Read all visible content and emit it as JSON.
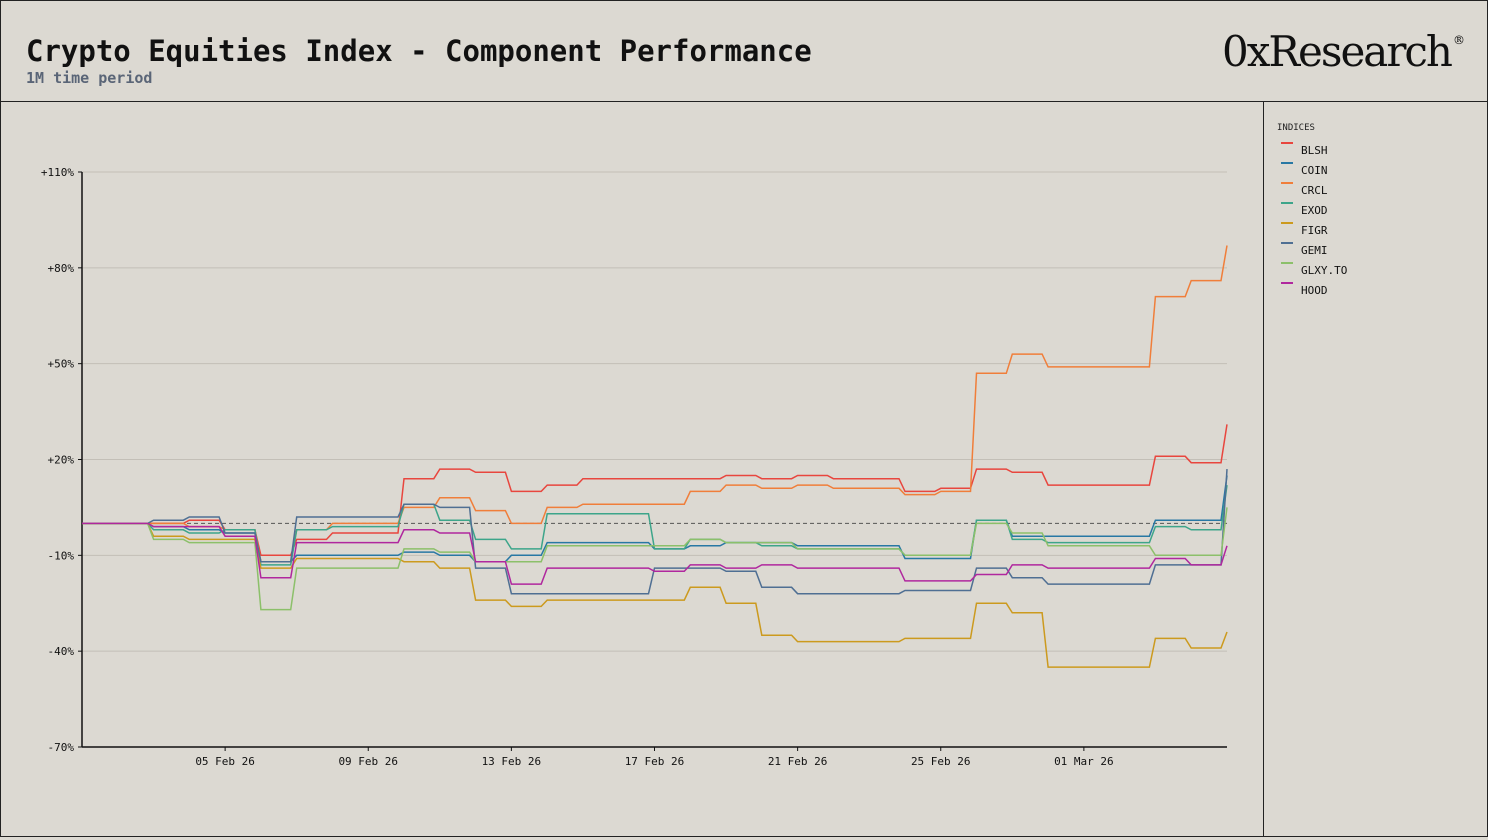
{
  "header": {
    "title": "Crypto Equities Index - Component Performance",
    "subtitle": "1M time period",
    "logo": "0xResearch",
    "logo_mark": "®"
  },
  "legend": {
    "title": "INDICES"
  },
  "chart_data": {
    "type": "line",
    "title": "Crypto Equities Index - Component Performance",
    "subtitle": "1M time period",
    "xlabel": "",
    "ylabel": "",
    "x_start": "2026-02-01",
    "x_end": "2026-03-05",
    "x_ticks": [
      "05 Feb 26",
      "09 Feb 26",
      "13 Feb 26",
      "17 Feb 26",
      "21 Feb 26",
      "25 Feb 26",
      "01 Mar 26"
    ],
    "y_ticks": [
      "+110%",
      "+80%",
      "+50%",
      "+20%",
      "-10%",
      "-40%",
      "-70%"
    ],
    "ylim": [
      -70,
      110
    ],
    "baseline": 0,
    "grid": true,
    "legend_position": "right",
    "series": [
      {
        "name": "BLSH",
        "color": "#e8463e",
        "points": [
          [
            "2026-02-01",
            0
          ],
          [
            "2026-02-02",
            0
          ],
          [
            "2026-02-03",
            0
          ],
          [
            "2026-02-04",
            1
          ],
          [
            "2026-02-05",
            -2
          ],
          [
            "2026-02-06",
            -10
          ],
          [
            "2026-02-07",
            -5
          ],
          [
            "2026-02-08",
            -3
          ],
          [
            "2026-02-09",
            -3
          ],
          [
            "2026-02-10",
            14
          ],
          [
            "2026-02-11",
            17
          ],
          [
            "2026-02-12",
            16
          ],
          [
            "2026-02-13",
            10
          ],
          [
            "2026-02-14",
            12
          ],
          [
            "2026-02-15",
            14
          ],
          [
            "2026-02-16",
            14
          ],
          [
            "2026-02-17",
            14
          ],
          [
            "2026-02-18",
            14
          ],
          [
            "2026-02-19",
            15
          ],
          [
            "2026-02-20",
            14
          ],
          [
            "2026-02-21",
            15
          ],
          [
            "2026-02-22",
            14
          ],
          [
            "2026-02-23",
            14
          ],
          [
            "2026-02-24",
            10
          ],
          [
            "2026-02-25",
            11
          ],
          [
            "2026-02-26",
            17
          ],
          [
            "2026-02-27",
            16
          ],
          [
            "2026-02-28",
            12
          ],
          [
            "2026-03-01",
            12
          ],
          [
            "2026-03-02",
            12
          ],
          [
            "2026-03-03",
            21
          ],
          [
            "2026-03-04",
            19
          ],
          [
            "2026-03-05",
            31
          ]
        ]
      },
      {
        "name": "COIN",
        "color": "#2878a4",
        "points": [
          [
            "2026-02-01",
            0
          ],
          [
            "2026-02-02",
            0
          ],
          [
            "2026-02-03",
            -1
          ],
          [
            "2026-02-04",
            -2
          ],
          [
            "2026-02-05",
            -3
          ],
          [
            "2026-02-06",
            -12
          ],
          [
            "2026-02-07",
            -10
          ],
          [
            "2026-02-08",
            -10
          ],
          [
            "2026-02-09",
            -10
          ],
          [
            "2026-02-10",
            -9
          ],
          [
            "2026-02-11",
            -10
          ],
          [
            "2026-02-12",
            -12
          ],
          [
            "2026-02-13",
            -10
          ],
          [
            "2026-02-14",
            -6
          ],
          [
            "2026-02-15",
            -6
          ],
          [
            "2026-02-16",
            -6
          ],
          [
            "2026-02-17",
            -8
          ],
          [
            "2026-02-18",
            -7
          ],
          [
            "2026-02-19",
            -6
          ],
          [
            "2026-02-20",
            -6
          ],
          [
            "2026-02-21",
            -7
          ],
          [
            "2026-02-22",
            -7
          ],
          [
            "2026-02-23",
            -7
          ],
          [
            "2026-02-24",
            -11
          ],
          [
            "2026-02-25",
            -11
          ],
          [
            "2026-02-26",
            1
          ],
          [
            "2026-02-27",
            -4
          ],
          [
            "2026-02-28",
            -4
          ],
          [
            "2026-03-01",
            -4
          ],
          [
            "2026-03-02",
            -4
          ],
          [
            "2026-03-03",
            1
          ],
          [
            "2026-03-04",
            1
          ],
          [
            "2026-03-05",
            15
          ]
        ]
      },
      {
        "name": "CRCL",
        "color": "#f07e3a",
        "points": [
          [
            "2026-02-01",
            0
          ],
          [
            "2026-02-02",
            0
          ],
          [
            "2026-02-03",
            0
          ],
          [
            "2026-02-04",
            -1
          ],
          [
            "2026-02-05",
            -2
          ],
          [
            "2026-02-06",
            -12
          ],
          [
            "2026-02-07",
            -2
          ],
          [
            "2026-02-08",
            0
          ],
          [
            "2026-02-09",
            0
          ],
          [
            "2026-02-10",
            5
          ],
          [
            "2026-02-11",
            8
          ],
          [
            "2026-02-12",
            4
          ],
          [
            "2026-02-13",
            0
          ],
          [
            "2026-02-14",
            5
          ],
          [
            "2026-02-15",
            6
          ],
          [
            "2026-02-16",
            6
          ],
          [
            "2026-02-17",
            6
          ],
          [
            "2026-02-18",
            10
          ],
          [
            "2026-02-19",
            12
          ],
          [
            "2026-02-20",
            11
          ],
          [
            "2026-02-21",
            12
          ],
          [
            "2026-02-22",
            11
          ],
          [
            "2026-02-23",
            11
          ],
          [
            "2026-02-24",
            9
          ],
          [
            "2026-02-25",
            10
          ],
          [
            "2026-02-26",
            47
          ],
          [
            "2026-02-27",
            53
          ],
          [
            "2026-02-28",
            49
          ],
          [
            "2026-03-01",
            49
          ],
          [
            "2026-03-02",
            49
          ],
          [
            "2026-03-03",
            71
          ],
          [
            "2026-03-04",
            76
          ],
          [
            "2026-03-05",
            87
          ]
        ]
      },
      {
        "name": "EXOD",
        "color": "#3da58a",
        "points": [
          [
            "2026-02-01",
            0
          ],
          [
            "2026-02-02",
            0
          ],
          [
            "2026-02-03",
            -2
          ],
          [
            "2026-02-04",
            -3
          ],
          [
            "2026-02-05",
            -2
          ],
          [
            "2026-02-06",
            -13
          ],
          [
            "2026-02-07",
            -2
          ],
          [
            "2026-02-08",
            -1
          ],
          [
            "2026-02-09",
            -1
          ],
          [
            "2026-02-10",
            6
          ],
          [
            "2026-02-11",
            1
          ],
          [
            "2026-02-12",
            -5
          ],
          [
            "2026-02-13",
            -8
          ],
          [
            "2026-02-14",
            3
          ],
          [
            "2026-02-15",
            3
          ],
          [
            "2026-02-16",
            3
          ],
          [
            "2026-02-17",
            -8
          ],
          [
            "2026-02-18",
            -5
          ],
          [
            "2026-02-19",
            -6
          ],
          [
            "2026-02-20",
            -7
          ],
          [
            "2026-02-21",
            -8
          ],
          [
            "2026-02-22",
            -8
          ],
          [
            "2026-02-23",
            -8
          ],
          [
            "2026-02-24",
            -10
          ],
          [
            "2026-02-25",
            -10
          ],
          [
            "2026-02-26",
            1
          ],
          [
            "2026-02-27",
            -5
          ],
          [
            "2026-02-28",
            -6
          ],
          [
            "2026-03-01",
            -6
          ],
          [
            "2026-03-02",
            -6
          ],
          [
            "2026-03-03",
            -1
          ],
          [
            "2026-03-04",
            -2
          ],
          [
            "2026-03-05",
            12
          ]
        ]
      },
      {
        "name": "FIGR",
        "color": "#cc9a1e",
        "points": [
          [
            "2026-02-01",
            0
          ],
          [
            "2026-02-02",
            0
          ],
          [
            "2026-02-03",
            -4
          ],
          [
            "2026-02-04",
            -5
          ],
          [
            "2026-02-05",
            -5
          ],
          [
            "2026-02-06",
            -14
          ],
          [
            "2026-02-07",
            -11
          ],
          [
            "2026-02-08",
            -11
          ],
          [
            "2026-02-09",
            -11
          ],
          [
            "2026-02-10",
            -12
          ],
          [
            "2026-02-11",
            -14
          ],
          [
            "2026-02-12",
            -24
          ],
          [
            "2026-02-13",
            -26
          ],
          [
            "2026-02-14",
            -24
          ],
          [
            "2026-02-15",
            -24
          ],
          [
            "2026-02-16",
            -24
          ],
          [
            "2026-02-17",
            -24
          ],
          [
            "2026-02-18",
            -20
          ],
          [
            "2026-02-19",
            -25
          ],
          [
            "2026-02-20",
            -35
          ],
          [
            "2026-02-21",
            -37
          ],
          [
            "2026-02-22",
            -37
          ],
          [
            "2026-02-23",
            -37
          ],
          [
            "2026-02-24",
            -36
          ],
          [
            "2026-02-25",
            -36
          ],
          [
            "2026-02-26",
            -25
          ],
          [
            "2026-02-27",
            -28
          ],
          [
            "2026-02-28",
            -45
          ],
          [
            "2026-03-01",
            -45
          ],
          [
            "2026-03-02",
            -45
          ],
          [
            "2026-03-03",
            -36
          ],
          [
            "2026-03-04",
            -39
          ],
          [
            "2026-03-05",
            -34
          ]
        ]
      },
      {
        "name": "GEMI",
        "color": "#4f6f93",
        "points": [
          [
            "2026-02-01",
            0
          ],
          [
            "2026-02-02",
            0
          ],
          [
            "2026-02-03",
            1
          ],
          [
            "2026-02-04",
            2
          ],
          [
            "2026-02-05",
            -3
          ],
          [
            "2026-02-06",
            -12
          ],
          [
            "2026-02-07",
            2
          ],
          [
            "2026-02-08",
            2
          ],
          [
            "2026-02-09",
            2
          ],
          [
            "2026-02-10",
            6
          ],
          [
            "2026-02-11",
            5
          ],
          [
            "2026-02-12",
            -14
          ],
          [
            "2026-02-13",
            -22
          ],
          [
            "2026-02-14",
            -22
          ],
          [
            "2026-02-15",
            -22
          ],
          [
            "2026-02-16",
            -22
          ],
          [
            "2026-02-17",
            -14
          ],
          [
            "2026-02-18",
            -14
          ],
          [
            "2026-02-19",
            -15
          ],
          [
            "2026-02-20",
            -20
          ],
          [
            "2026-02-21",
            -22
          ],
          [
            "2026-02-22",
            -22
          ],
          [
            "2026-02-23",
            -22
          ],
          [
            "2026-02-24",
            -21
          ],
          [
            "2026-02-25",
            -21
          ],
          [
            "2026-02-26",
            -14
          ],
          [
            "2026-02-27",
            -17
          ],
          [
            "2026-02-28",
            -19
          ],
          [
            "2026-03-01",
            -19
          ],
          [
            "2026-03-02",
            -19
          ],
          [
            "2026-03-03",
            -13
          ],
          [
            "2026-03-04",
            -13
          ],
          [
            "2026-03-05",
            17
          ]
        ]
      },
      {
        "name": "GLXY.TO",
        "color": "#8cc06a",
        "points": [
          [
            "2026-02-01",
            0
          ],
          [
            "2026-02-02",
            0
          ],
          [
            "2026-02-03",
            -5
          ],
          [
            "2026-02-04",
            -6
          ],
          [
            "2026-02-05",
            -6
          ],
          [
            "2026-02-06",
            -27
          ],
          [
            "2026-02-07",
            -14
          ],
          [
            "2026-02-08",
            -14
          ],
          [
            "2026-02-09",
            -14
          ],
          [
            "2026-02-10",
            -8
          ],
          [
            "2026-02-11",
            -9
          ],
          [
            "2026-02-12",
            -12
          ],
          [
            "2026-02-13",
            -12
          ],
          [
            "2026-02-14",
            -7
          ],
          [
            "2026-02-15",
            -7
          ],
          [
            "2026-02-16",
            -7
          ],
          [
            "2026-02-17",
            -7
          ],
          [
            "2026-02-18",
            -5
          ],
          [
            "2026-02-19",
            -6
          ],
          [
            "2026-02-20",
            -6
          ],
          [
            "2026-02-21",
            -8
          ],
          [
            "2026-02-22",
            -8
          ],
          [
            "2026-02-23",
            -8
          ],
          [
            "2026-02-24",
            -10
          ],
          [
            "2026-02-25",
            -10
          ],
          [
            "2026-02-26",
            0
          ],
          [
            "2026-02-27",
            -3
          ],
          [
            "2026-02-28",
            -7
          ],
          [
            "2026-03-01",
            -7
          ],
          [
            "2026-03-02",
            -7
          ],
          [
            "2026-03-03",
            -10
          ],
          [
            "2026-03-04",
            -10
          ],
          [
            "2026-03-05",
            5
          ]
        ]
      },
      {
        "name": "HOOD",
        "color": "#b0279e",
        "points": [
          [
            "2026-02-01",
            0
          ],
          [
            "2026-02-02",
            0
          ],
          [
            "2026-02-03",
            -1
          ],
          [
            "2026-02-04",
            -1
          ],
          [
            "2026-02-05",
            -4
          ],
          [
            "2026-02-06",
            -17
          ],
          [
            "2026-02-07",
            -6
          ],
          [
            "2026-02-08",
            -6
          ],
          [
            "2026-02-09",
            -6
          ],
          [
            "2026-02-10",
            -2
          ],
          [
            "2026-02-11",
            -3
          ],
          [
            "2026-02-12",
            -12
          ],
          [
            "2026-02-13",
            -19
          ],
          [
            "2026-02-14",
            -14
          ],
          [
            "2026-02-15",
            -14
          ],
          [
            "2026-02-16",
            -14
          ],
          [
            "2026-02-17",
            -15
          ],
          [
            "2026-02-18",
            -13
          ],
          [
            "2026-02-19",
            -14
          ],
          [
            "2026-02-20",
            -13
          ],
          [
            "2026-02-21",
            -14
          ],
          [
            "2026-02-22",
            -14
          ],
          [
            "2026-02-23",
            -14
          ],
          [
            "2026-02-24",
            -18
          ],
          [
            "2026-02-25",
            -18
          ],
          [
            "2026-02-26",
            -16
          ],
          [
            "2026-02-27",
            -13
          ],
          [
            "2026-02-28",
            -14
          ],
          [
            "2026-03-01",
            -14
          ],
          [
            "2026-03-02",
            -14
          ],
          [
            "2026-03-03",
            -11
          ],
          [
            "2026-03-04",
            -13
          ],
          [
            "2026-03-05",
            -7
          ]
        ]
      }
    ]
  }
}
